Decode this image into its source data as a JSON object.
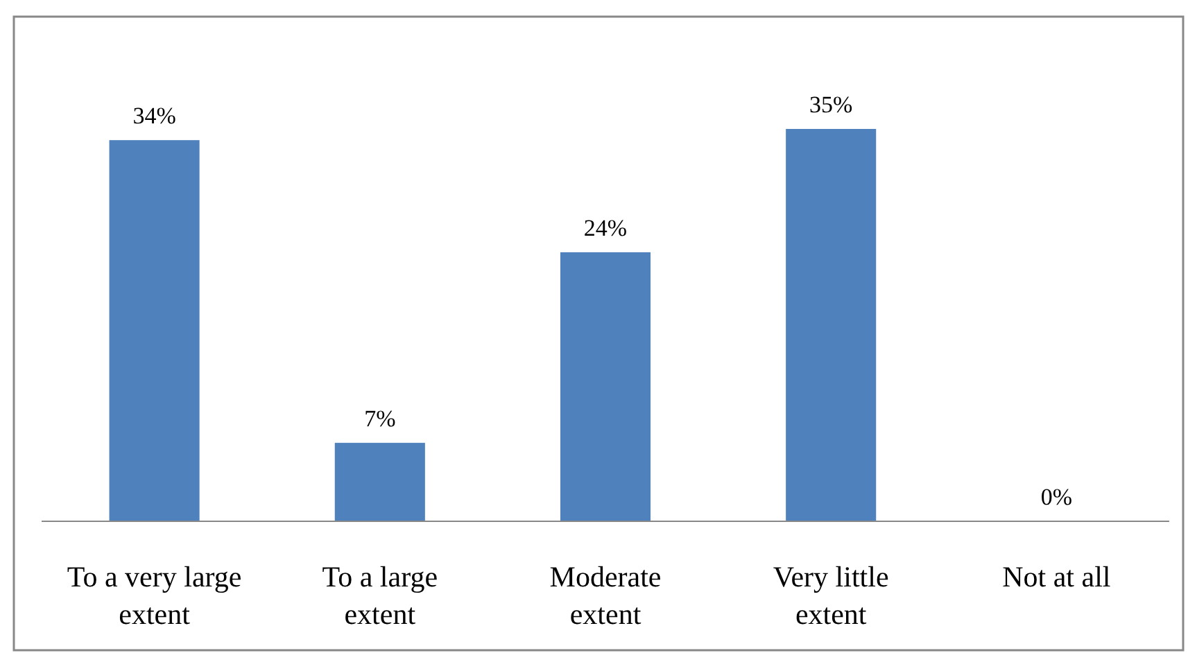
{
  "chart_data": {
    "type": "bar",
    "categories": [
      "To a very large extent",
      "To a large extent",
      "Moderate extent",
      "Very little extent",
      "Not at all"
    ],
    "values": [
      34,
      7,
      24,
      35,
      0
    ],
    "value_labels": [
      "34%",
      "7%",
      "24%",
      "35%",
      "0%"
    ],
    "color": "#4f81bd"
  }
}
